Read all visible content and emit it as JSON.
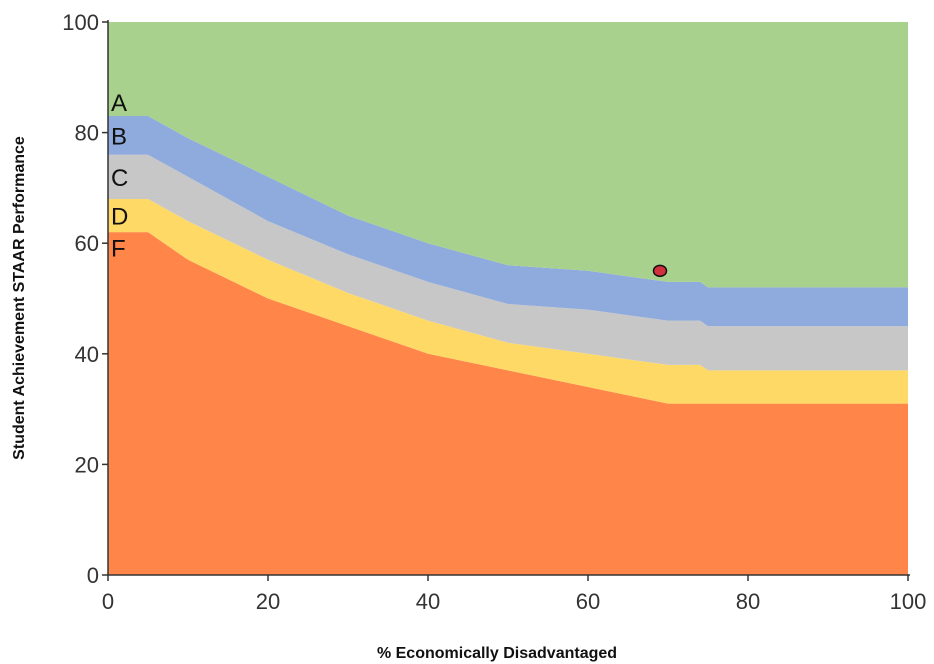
{
  "chart_data": {
    "type": "area",
    "title": "",
    "xlabel": "% Economically Disadvantaged",
    "ylabel": "Student Achievement STAAR Performance",
    "xlim": [
      0,
      100
    ],
    "ylim": [
      0,
      100
    ],
    "x_ticks": [
      0,
      20,
      40,
      60,
      80,
      100
    ],
    "y_ticks": [
      0,
      20,
      40,
      60,
      80,
      100
    ],
    "grid": false,
    "x": [
      0,
      5,
      10,
      20,
      30,
      40,
      50,
      60,
      70,
      74,
      75,
      80,
      90,
      100
    ],
    "boundaries": [
      {
        "name": "F/D",
        "values": [
          62,
          62,
          57,
          50,
          45,
          40,
          37,
          34,
          31,
          31,
          31,
          31,
          31,
          31
        ]
      },
      {
        "name": "D/C",
        "values": [
          68,
          68,
          64,
          57,
          51,
          46,
          42,
          40,
          38,
          38,
          37,
          37,
          37,
          37
        ]
      },
      {
        "name": "C/B",
        "values": [
          76,
          76,
          72,
          64,
          58,
          53,
          49,
          48,
          46,
          46,
          45,
          45,
          45,
          45
        ]
      },
      {
        "name": "B/A",
        "values": [
          83,
          83,
          79,
          72,
          65,
          60,
          56,
          55,
          53,
          53,
          52,
          52,
          52,
          52
        ]
      }
    ],
    "grades": [
      {
        "letter": "A",
        "color": "#a8d18d"
      },
      {
        "letter": "B",
        "color": "#8faadc"
      },
      {
        "letter": "C",
        "color": "#c7c7c7"
      },
      {
        "letter": "D",
        "color": "#ffd966"
      },
      {
        "letter": "F",
        "color": "#ff8548"
      }
    ],
    "points": [
      {
        "x": 69,
        "y": 55,
        "color": "#d0313c"
      }
    ]
  }
}
